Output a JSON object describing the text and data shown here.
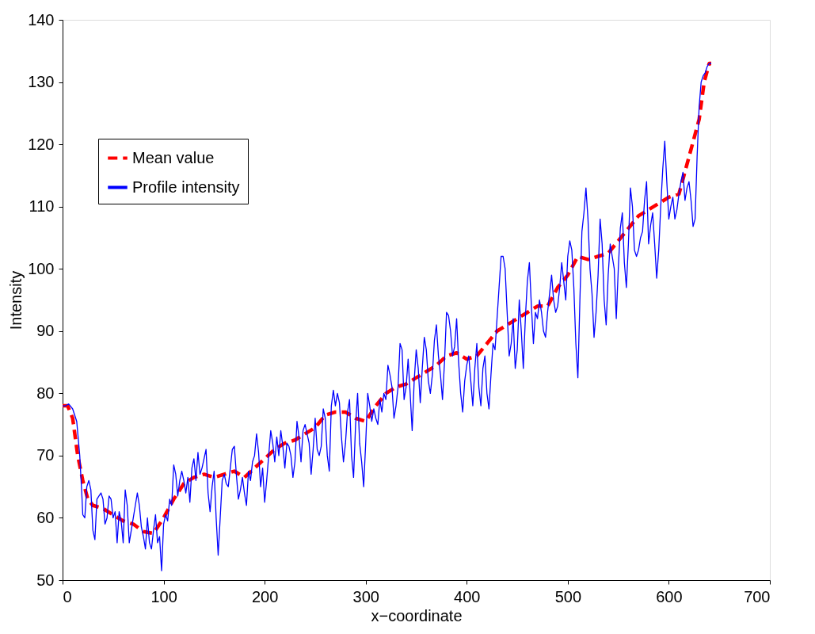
{
  "chart_data": {
    "type": "line",
    "xlabel": "x−coordinate",
    "ylabel": "Intensity",
    "xlim": [
      0,
      700
    ],
    "xticks": [
      0,
      100,
      200,
      300,
      400,
      500,
      600,
      700
    ],
    "ylim": [
      50,
      140
    ],
    "yticks": [
      50,
      60,
      70,
      80,
      90,
      100,
      110,
      120,
      130,
      140
    ],
    "grid": false,
    "legend": "top left",
    "marker": "none",
    "series": [
      {
        "name": "Mean value",
        "color": "#ff0000",
        "line_style": "dashed",
        "x": [
          0,
          5,
          10,
          15,
          20,
          25,
          30,
          40,
          50,
          60,
          70,
          80,
          90,
          100,
          110,
          120,
          130,
          140,
          150,
          160,
          170,
          180,
          190,
          200,
          210,
          220,
          230,
          240,
          250,
          260,
          270,
          280,
          290,
          300,
          310,
          320,
          330,
          340,
          350,
          360,
          370,
          380,
          390,
          400,
          410,
          420,
          430,
          440,
          450,
          460,
          470,
          480,
          490,
          500,
          510,
          520,
          530,
          540,
          550,
          560,
          570,
          580,
          590,
          600,
          610,
          620,
          630,
          635,
          640,
          642
        ],
        "values": [
          78,
          78,
          76,
          70,
          66,
          63,
          62,
          61.5,
          60.5,
          59.5,
          59,
          57.8,
          57.5,
          60,
          63,
          65.5,
          66.5,
          67,
          66.5,
          67,
          67.5,
          66.5,
          68,
          69.5,
          71,
          72,
          72.5,
          73.5,
          74.5,
          76.5,
          77,
          77,
          76,
          75.5,
          78,
          80,
          81,
          81.5,
          82.5,
          83.5,
          84.5,
          86,
          86.5,
          85.5,
          86,
          88,
          90,
          91,
          92,
          93,
          94,
          94,
          97,
          99,
          102,
          101.5,
          102,
          102.5,
          104.5,
          106.5,
          108.5,
          109.5,
          110.5,
          111.5,
          112,
          118,
          124,
          130,
          133,
          133
        ]
      },
      {
        "name": "Profile intensity",
        "color": "#0000ff",
        "line_style": "solid",
        "x": [
          0,
          3,
          6,
          10,
          14,
          17,
          19,
          20,
          22,
          24,
          26,
          28,
          30,
          32,
          34,
          36,
          38,
          40,
          42,
          44,
          46,
          48,
          50,
          52,
          54,
          56,
          58,
          60,
          62,
          64,
          66,
          68,
          70,
          72,
          74,
          76,
          78,
          80,
          82,
          84,
          86,
          88,
          90,
          92,
          94,
          96,
          98,
          100,
          102,
          104,
          106,
          108,
          110,
          112,
          114,
          116,
          118,
          120,
          122,
          124,
          126,
          128,
          130,
          132,
          134,
          136,
          138,
          140,
          142,
          144,
          146,
          148,
          150,
          152,
          154,
          156,
          158,
          160,
          162,
          164,
          166,
          168,
          170,
          172,
          174,
          176,
          178,
          180,
          182,
          184,
          186,
          188,
          190,
          192,
          194,
          196,
          198,
          200,
          202,
          204,
          206,
          208,
          210,
          212,
          214,
          216,
          218,
          220,
          222,
          224,
          226,
          228,
          230,
          232,
          234,
          236,
          238,
          240,
          242,
          244,
          246,
          248,
          250,
          252,
          254,
          256,
          258,
          260,
          262,
          264,
          266,
          268,
          270,
          272,
          274,
          276,
          278,
          280,
          282,
          284,
          286,
          288,
          290,
          292,
          294,
          296,
          298,
          300,
          302,
          304,
          306,
          308,
          310,
          312,
          314,
          316,
          318,
          320,
          322,
          324,
          326,
          328,
          330,
          332,
          334,
          336,
          338,
          340,
          342,
          344,
          346,
          348,
          350,
          352,
          354,
          356,
          358,
          360,
          362,
          364,
          366,
          368,
          370,
          372,
          374,
          376,
          378,
          380,
          382,
          384,
          386,
          388,
          390,
          392,
          394,
          396,
          398,
          400,
          402,
          404,
          406,
          408,
          410,
          412,
          414,
          416,
          418,
          420,
          422,
          424,
          426,
          428,
          430,
          432,
          434,
          436,
          438,
          440,
          442,
          444,
          446,
          448,
          450,
          452,
          454,
          456,
          458,
          460,
          462,
          464,
          466,
          468,
          470,
          472,
          474,
          476,
          478,
          480,
          482,
          484,
          486,
          488,
          490,
          492,
          494,
          496,
          498,
          500,
          502,
          504,
          506,
          508,
          510,
          512,
          514,
          516,
          518,
          520,
          522,
          524,
          526,
          528,
          530,
          532,
          534,
          536,
          538,
          540,
          542,
          544,
          546,
          548,
          550,
          552,
          554,
          556,
          558,
          560,
          562,
          564,
          566,
          568,
          570,
          572,
          574,
          576,
          578,
          580,
          582,
          584,
          586,
          588,
          590,
          592,
          594,
          596,
          598,
          600,
          602,
          604,
          606,
          608,
          610,
          612,
          614,
          616,
          618,
          620,
          622,
          624,
          626,
          628,
          630,
          632,
          634,
          636,
          638,
          640,
          642
        ],
        "values": [
          78,
          78,
          78.3,
          77.5,
          75.5,
          70,
          64,
          60.5,
          60,
          65,
          66,
          64.5,
          58,
          56.5,
          63,
          63.5,
          64,
          63,
          59,
          60,
          63.5,
          63,
          60,
          61,
          56,
          61,
          59.5,
          56,
          64.5,
          62,
          56,
          58,
          60,
          62,
          64,
          62,
          58.5,
          57,
          55,
          60,
          56,
          55,
          58,
          60.5,
          56,
          57,
          51.5,
          59,
          60.5,
          59.5,
          63,
          62,
          68.5,
          67,
          63.5,
          66,
          67.5,
          66,
          64,
          66.5,
          62.5,
          68,
          69.5,
          66,
          70.5,
          67,
          68,
          69.5,
          71,
          64,
          61,
          65,
          67.5,
          60,
          54,
          60,
          66,
          67,
          65.5,
          65,
          68,
          71,
          71.5,
          67,
          63,
          64.5,
          66.5,
          64,
          62,
          67.5,
          66,
          69,
          70,
          73.5,
          70.5,
          65,
          68,
          62.5,
          66,
          70,
          74,
          72,
          69,
          73,
          70,
          74,
          71.5,
          68,
          72,
          71.5,
          70,
          66.5,
          69,
          75.5,
          73,
          69,
          74,
          75,
          73.5,
          72,
          67,
          71,
          76,
          71,
          70,
          71.5,
          77.5,
          76,
          70,
          67.5,
          78,
          80.5,
          78,
          80,
          78.5,
          73,
          69,
          72,
          77,
          79,
          70,
          66.5,
          75,
          80,
          72,
          69,
          65,
          72,
          80,
          78,
          75.5,
          77.5,
          76,
          75,
          79,
          77,
          80,
          79,
          84.5,
          83,
          81,
          76,
          78,
          81,
          88,
          87,
          79,
          81,
          85.5,
          80,
          74,
          82,
          87,
          84,
          78.5,
          84,
          89,
          87,
          82,
          80,
          83,
          88.5,
          91,
          86,
          83,
          79,
          85,
          93,
          92.5,
          90,
          86,
          87.5,
          92,
          85,
          80,
          77,
          82,
          84.5,
          86,
          82,
          78,
          84,
          88,
          81,
          78,
          84,
          86,
          80,
          77.5,
          83,
          88,
          87,
          92,
          97,
          102,
          102,
          100,
          93,
          86,
          88,
          92,
          84,
          87,
          95,
          90,
          84,
          92,
          98,
          101,
          94,
          88,
          93,
          92,
          95,
          93,
          90,
          89,
          93,
          96,
          99,
          95,
          93,
          94,
          97,
          101,
          98,
          95,
          102,
          104.5,
          103,
          97,
          88,
          82.5,
          95,
          106,
          109,
          113,
          108,
          100,
          96,
          89,
          93,
          99,
          108,
          104,
          95,
          91,
          99,
          104,
          102,
          100,
          92,
          100,
          106.5,
          109,
          101,
          97,
          104,
          113,
          110,
          103,
          102,
          103,
          105,
          106,
          111,
          114,
          104,
          107,
          109,
          104,
          98.5,
          103,
          110,
          116,
          120.5,
          114,
          108,
          110,
          111.5,
          108,
          109.5,
          112,
          114,
          115.5,
          111,
          113,
          114,
          111,
          106.8,
          108,
          118,
          126,
          130,
          131,
          131.5,
          132.5,
          133,
          133
        ]
      }
    ]
  }
}
